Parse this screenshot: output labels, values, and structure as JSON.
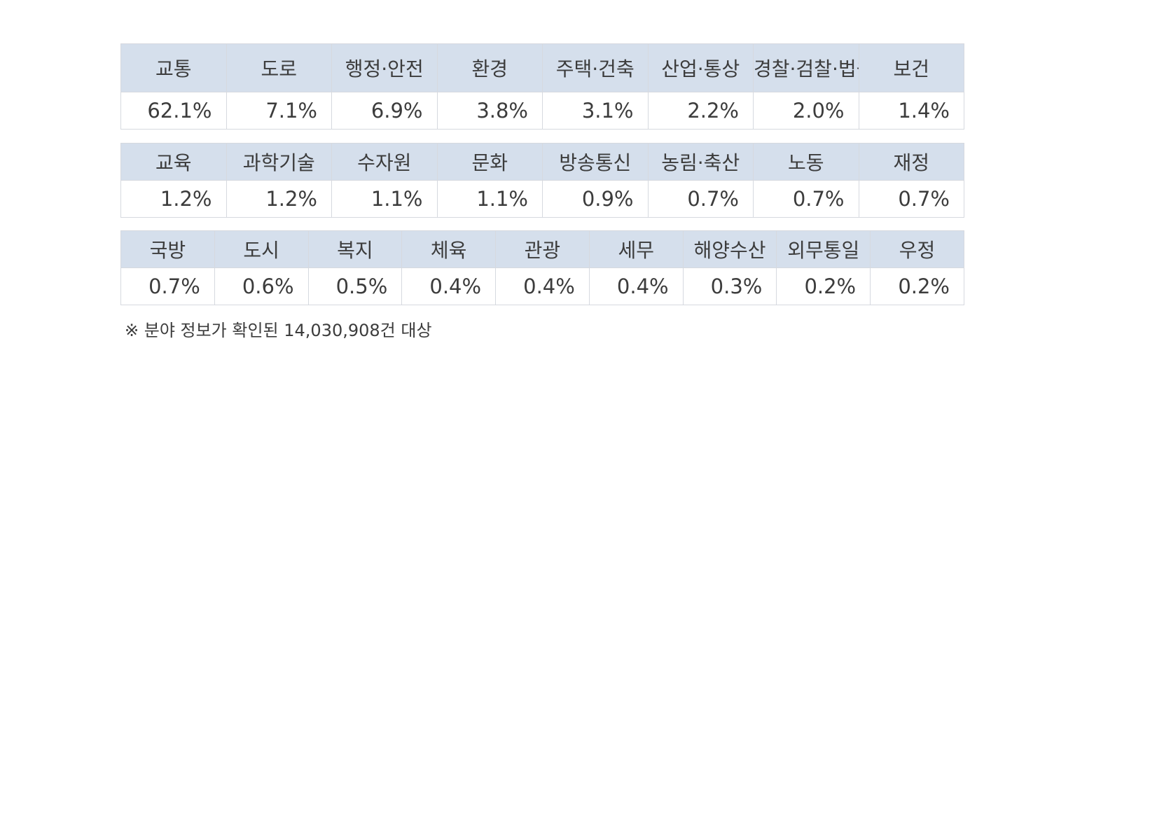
{
  "tables": [
    {
      "headers": [
        "교통",
        "도로",
        "행정·안전",
        "환경",
        "주택·건축",
        "산업·통상",
        "경찰·검찰·법원",
        "보건"
      ],
      "values": [
        "62.1%",
        "7.1%",
        "6.9%",
        "3.8%",
        "3.1%",
        "2.2%",
        "2.0%",
        "1.4%"
      ]
    },
    {
      "headers": [
        "교육",
        "과학기술",
        "수자원",
        "문화",
        "방송통신",
        "농림·축산",
        "노동",
        "재정"
      ],
      "values": [
        "1.2%",
        "1.2%",
        "1.1%",
        "1.1%",
        "0.9%",
        "0.7%",
        "0.7%",
        "0.7%"
      ]
    },
    {
      "headers": [
        "국방",
        "도시",
        "복지",
        "체육",
        "관광",
        "세무",
        "해양수산",
        "외무통일",
        "우정"
      ],
      "values": [
        "0.7%",
        "0.6%",
        "0.5%",
        "0.4%",
        "0.4%",
        "0.4%",
        "0.3%",
        "0.2%",
        "0.2%"
      ]
    }
  ],
  "note": "※  분야 정보가 확인된 14,030,908건 대상",
  "colors": {
    "header_background": "#d5dfec",
    "border": "#d6d9df",
    "text": "#3c3c3c"
  }
}
